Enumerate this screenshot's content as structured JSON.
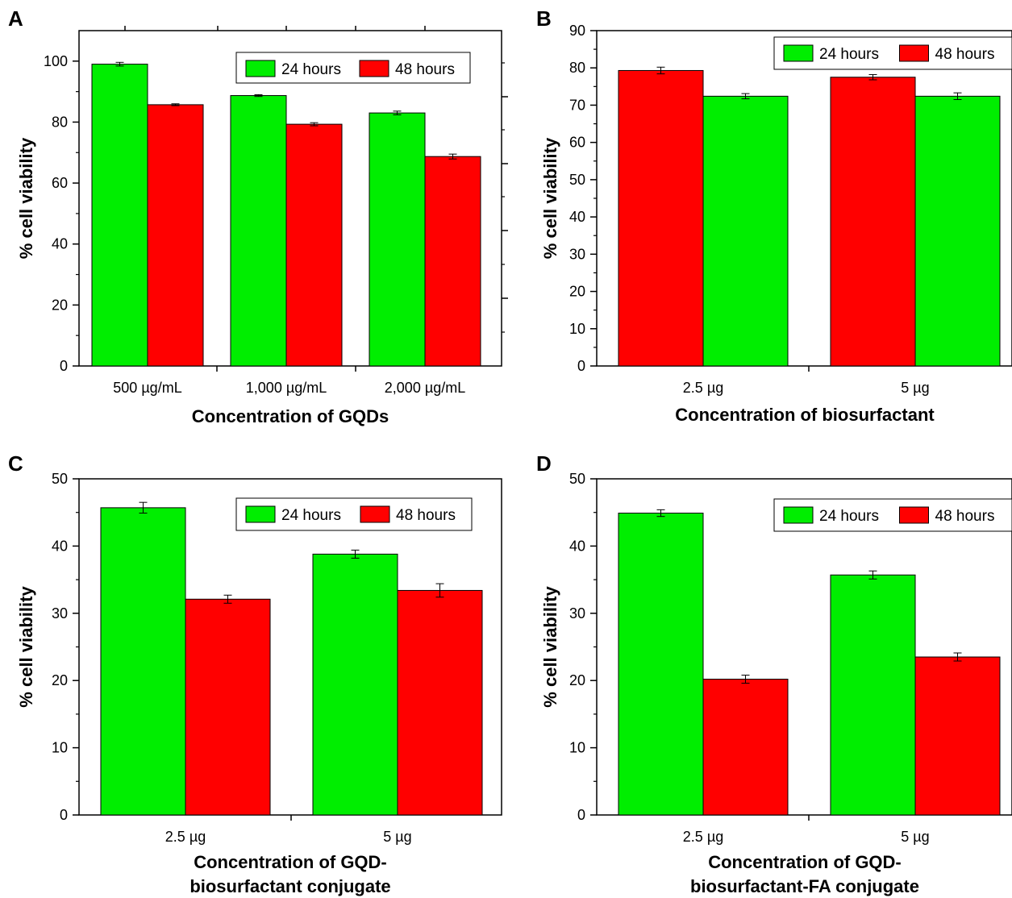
{
  "chart_data": [
    {
      "type": "bar",
      "panel": "A",
      "categories": [
        "500 µg/mL",
        "1,000 µg/mL",
        "2,000 µg/mL"
      ],
      "series": [
        {
          "name": "24 hours",
          "values": [
            99.0,
            88.7,
            83.0
          ],
          "errors": [
            0.6,
            0.3,
            0.6
          ],
          "color": "#00ee00"
        },
        {
          "name": "48 hours",
          "values": [
            85.7,
            79.3,
            68.7
          ],
          "errors": [
            0.3,
            0.5,
            0.8
          ],
          "color": "#ff0000"
        }
      ],
      "xlabel": "Concentration of GQDs",
      "ylabel": "% cell viability",
      "ylim": [
        0,
        110
      ],
      "yticks": [
        0,
        20,
        40,
        60,
        80,
        100
      ],
      "legend": "top-right",
      "grid": false
    },
    {
      "type": "bar",
      "panel": "B",
      "categories": [
        "2.5 µg",
        "5 µg"
      ],
      "series": [
        {
          "name": "48 hours",
          "values": [
            79.3,
            77.5
          ],
          "errors": [
            0.9,
            0.7
          ],
          "color": "#ff0000"
        },
        {
          "name": "24 hours",
          "values": [
            72.4,
            72.4
          ],
          "errors": [
            0.7,
            0.9
          ],
          "color": "#00ee00"
        }
      ],
      "legend_order": [
        "24 hours",
        "48 hours"
      ],
      "xlabel": "Concentration of biosurfactant",
      "ylabel": "% cell viability",
      "ylim": [
        0,
        90
      ],
      "yticks": [
        0,
        10,
        20,
        30,
        40,
        50,
        60,
        70,
        80,
        90
      ],
      "legend": "top-right",
      "grid": false
    },
    {
      "type": "bar",
      "panel": "C",
      "categories": [
        "2.5 µg",
        "5 µg"
      ],
      "series": [
        {
          "name": "24 hours",
          "values": [
            45.7,
            38.8
          ],
          "errors": [
            0.8,
            0.6
          ],
          "color": "#00ee00"
        },
        {
          "name": "48 hours",
          "values": [
            32.1,
            33.4
          ],
          "errors": [
            0.6,
            1.0
          ],
          "color": "#ff0000"
        }
      ],
      "xlabel": "Concentration of GQD-\nbiosurfactant conjugate",
      "ylabel": "% cell viability",
      "ylim": [
        0,
        50
      ],
      "yticks": [
        0,
        10,
        20,
        30,
        40,
        50
      ],
      "legend": "top-right",
      "grid": false
    },
    {
      "type": "bar",
      "panel": "D",
      "categories": [
        "2.5 µg",
        "5 µg"
      ],
      "series": [
        {
          "name": "24 hours",
          "values": [
            44.9,
            35.7
          ],
          "errors": [
            0.5,
            0.6
          ],
          "color": "#00ee00"
        },
        {
          "name": "48 hours",
          "values": [
            20.2,
            23.5
          ],
          "errors": [
            0.6,
            0.6
          ],
          "color": "#ff0000"
        }
      ],
      "xlabel": "Concentration of GQD-\nbiosurfactant-FA conjugate",
      "ylabel": "% cell viability",
      "ylim": [
        0,
        50
      ],
      "yticks": [
        0,
        10,
        20,
        30,
        40,
        50
      ],
      "legend": "top-right",
      "grid": false
    }
  ]
}
